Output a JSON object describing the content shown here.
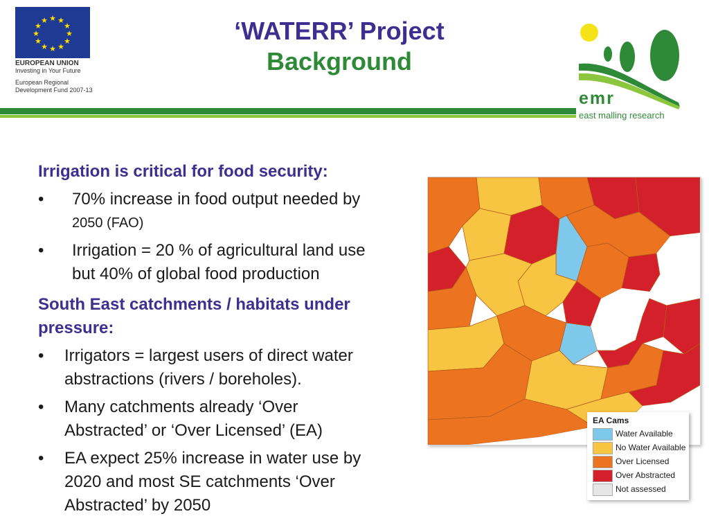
{
  "eu_logo": {
    "name": "EUROPEAN UNION",
    "tagline": "Investing in Your Future",
    "fund_line1": "European Regional",
    "fund_line2": "Development Fund 2007-13",
    "flag_color": "#1f3a93",
    "star_color": "#ffdd00"
  },
  "title": {
    "line1": "‘WATERR’ Project",
    "line2": "Background"
  },
  "emr_logo": {
    "mark": "emr",
    "name": "east malling research"
  },
  "sections": [
    {
      "heading": "Irrigation is critical  for food security:",
      "bullets": [
        {
          "dot": "•",
          "line1": "70% increase in food output needed by",
          "line2": "2050 (FAO)"
        },
        {
          "dot": "•",
          "line1": "Irrigation = 20 % of agricultural land use",
          "line2": "but 40% of global food production"
        }
      ]
    },
    {
      "heading_line1": "South East catchments / habitats under",
      "heading_line2": "pressure:",
      "bullets": [
        {
          "dot": "•",
          "line1": "Irrigators = largest users of direct  water",
          "line2": "abstractions (rivers / boreholes)."
        },
        {
          "dot": "•",
          "line1": "Many catchments already ‘Over",
          "line2": "Abstracted’ or ‘Over Licensed’ (EA)"
        },
        {
          "dot": "•",
          "line1": "EA expect 25% increase in water use by",
          "line2": "2020  and  most SE catchments ‘Over",
          "line3": "Abstracted’ by 2050"
        }
      ]
    }
  ],
  "legend": {
    "title": "EA Cams",
    "items": [
      {
        "label": "Water Available",
        "color": "#7ec8ec"
      },
      {
        "label": "No Water Available",
        "color": "#f7c541"
      },
      {
        "label": "Over Licensed",
        "color": "#ec7420"
      },
      {
        "label": "Over Abstracted",
        "color": "#d3202a"
      },
      {
        "label": "Not assessed",
        "color": "#e6e6e6"
      }
    ]
  },
  "colors": {
    "heading": "#3c2f8f",
    "title_green": "#2f8a38",
    "rule_dark": "#2f8a38",
    "rule_light": "#8cc63f",
    "sea": "#ffffff"
  }
}
